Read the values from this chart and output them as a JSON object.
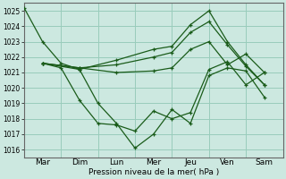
{
  "xlabel": "Pression niveau de la mer( hPa )",
  "bg_color": "#cce8e0",
  "grid_color": "#99ccbb",
  "line_color": "#1a5c1a",
  "ylim": [
    1015.5,
    1025.5
  ],
  "yticks": [
    1016,
    1017,
    1018,
    1019,
    1020,
    1021,
    1022,
    1023,
    1024,
    1025
  ],
  "day_labels": [
    "Mar",
    "Dim",
    "Lun",
    "Mer",
    "Jeu",
    "Ven",
    "Sam"
  ],
  "day_positions": [
    0.5,
    1.5,
    2.5,
    3.5,
    4.5,
    5.5,
    6.5
  ],
  "vline_positions": [
    0,
    1,
    2,
    3,
    4,
    5,
    6,
    7
  ],
  "xlim": [
    0,
    7
  ],
  "lines": [
    {
      "x": [
        0.0,
        0.5,
        1.0,
        1.5,
        2.0,
        2.5,
        3.0,
        3.5,
        4.0,
        4.5,
        5.0,
        5.5,
        6.0,
        6.5
      ],
      "y": [
        1025.2,
        1023.0,
        1021.6,
        1021.2,
        1019.0,
        1017.7,
        1016.1,
        1017.0,
        1018.6,
        1017.7,
        1020.8,
        1021.3,
        1021.1,
        1019.4
      ]
    },
    {
      "x": [
        0.5,
        1.0,
        1.5,
        2.0,
        2.5,
        3.0,
        3.5,
        4.0,
        4.5,
        5.0,
        5.5,
        6.0,
        6.5
      ],
      "y": [
        1021.6,
        1021.3,
        1019.2,
        1017.7,
        1017.6,
        1017.2,
        1018.5,
        1018.0,
        1018.4,
        1021.2,
        1021.7,
        1020.2,
        1021.0
      ]
    },
    {
      "x": [
        0.5,
        1.5,
        2.5,
        3.5,
        4.0,
        4.5,
        5.0,
        5.5,
        6.0,
        6.5
      ],
      "y": [
        1021.6,
        1021.3,
        1021.0,
        1021.1,
        1021.3,
        1022.5,
        1023.0,
        1021.5,
        1022.2,
        1021.0
      ]
    },
    {
      "x": [
        0.5,
        1.5,
        2.5,
        3.5,
        4.0,
        4.5,
        5.0,
        5.5,
        6.0,
        6.5
      ],
      "y": [
        1021.6,
        1021.3,
        1021.5,
        1022.0,
        1022.3,
        1023.6,
        1024.3,
        1022.8,
        1021.4,
        1020.2
      ]
    },
    {
      "x": [
        0.5,
        1.5,
        2.5,
        3.5,
        4.0,
        4.5,
        5.0,
        5.5,
        6.0,
        6.5
      ],
      "y": [
        1021.6,
        1021.2,
        1021.8,
        1022.5,
        1022.7,
        1024.1,
        1025.0,
        1023.0,
        1021.5,
        1020.2
      ]
    }
  ]
}
